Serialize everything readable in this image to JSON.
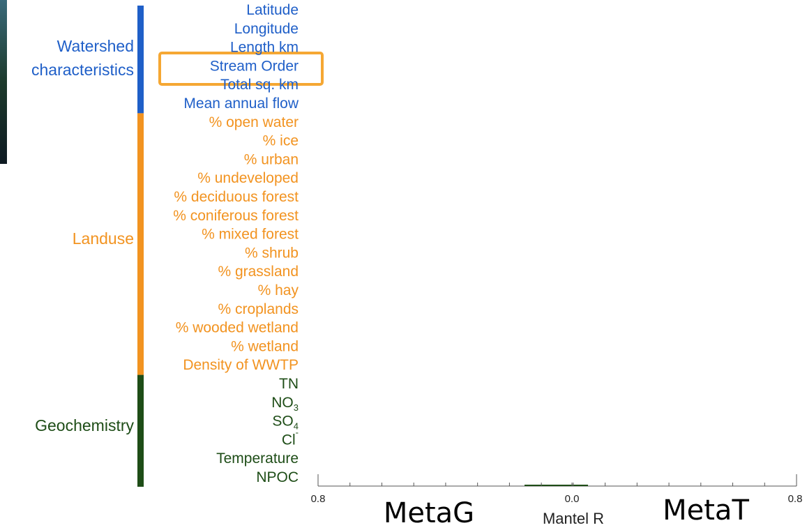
{
  "groups": [
    {
      "label": "Watershed characteristics",
      "color": "#1f5fc8",
      "variables": [
        {
          "text": "Latitude"
        },
        {
          "text": "Longitude"
        },
        {
          "text": "Length km"
        },
        {
          "text": "Stream Order"
        },
        {
          "text": "Total sq. km"
        },
        {
          "text": "Mean annual flow"
        }
      ]
    },
    {
      "label": "Landuse",
      "color": "#f29320",
      "variables": [
        {
          "text": "% open water"
        },
        {
          "text": "% ice"
        },
        {
          "text": "% urban"
        },
        {
          "text": "% undeveloped"
        },
        {
          "text": "% deciduous forest"
        },
        {
          "text": "% coniferous forest"
        },
        {
          "text": "% mixed forest"
        },
        {
          "text": "% shrub"
        },
        {
          "text": "% grassland"
        },
        {
          "text": "% hay"
        },
        {
          "text": "% croplands"
        },
        {
          "text": "% wooded wetland"
        },
        {
          "text": "% wetland"
        },
        {
          "text": "Density of WWTP"
        }
      ]
    },
    {
      "label": "Geochemistry",
      "color": "#1e4d17",
      "variables": [
        {
          "text": "TN"
        },
        {
          "text": "NO",
          "sub": "3"
        },
        {
          "text": "SO",
          "sub": "4"
        },
        {
          "text": "Cl",
          "sup": "-"
        },
        {
          "text": "Temperature"
        },
        {
          "text": "NPOC"
        }
      ]
    }
  ],
  "axis": {
    "ticks": [
      "0.8",
      "0.0",
      "0.8"
    ],
    "label": "Mantel R",
    "left_title": "MetaG",
    "right_title": "MetaT"
  }
}
